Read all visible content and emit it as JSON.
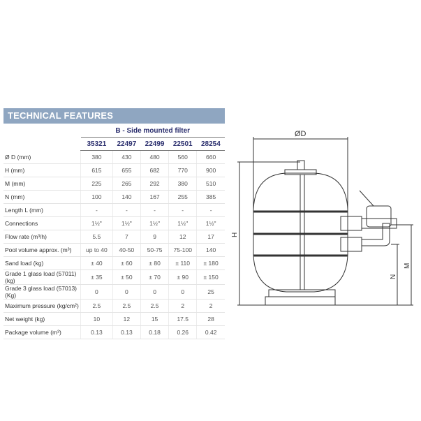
{
  "title": "TECHNICAL FEATURES",
  "group_header": "B - Side mounted filter",
  "models": [
    "35321",
    "22497",
    "22499",
    "22501",
    "28254"
  ],
  "rows": [
    {
      "label": "Ø D (mm)",
      "values": [
        "380",
        "430",
        "480",
        "560",
        "660"
      ]
    },
    {
      "label": "H (mm)",
      "values": [
        "615",
        "655",
        "682",
        "770",
        "900"
      ]
    },
    {
      "label": "M (mm)",
      "values": [
        "225",
        "265",
        "292",
        "380",
        "510"
      ]
    },
    {
      "label": "N (mm)",
      "values": [
        "100",
        "140",
        "167",
        "255",
        "385"
      ]
    },
    {
      "label": "Length L (mm)",
      "values": [
        "-",
        "-",
        "-",
        "-",
        "-"
      ]
    },
    {
      "label": "Connections",
      "values": [
        "1½\"",
        "1½\"",
        "1½\"",
        "1½\"",
        "1½\""
      ]
    },
    {
      "label": "Flow rate (m³/h)",
      "values": [
        "5.5",
        "7",
        "9",
        "12",
        "17"
      ]
    },
    {
      "label": "Pool volume approx. (m³)",
      "values": [
        "up to 40",
        "40-50",
        "50-75",
        "75-100",
        "140"
      ]
    },
    {
      "label": "Sand load (kg)",
      "values": [
        "± 40",
        "± 60",
        "± 80",
        "± 110",
        "± 180"
      ]
    },
    {
      "label": "Grade 1 glass load (57011) (kg)",
      "values": [
        "± 35",
        "± 50",
        "± 70",
        "± 90",
        "± 150"
      ]
    },
    {
      "label": "Grade 3 glass load (57013) (Kg)",
      "values": [
        "0",
        "0",
        "0",
        "0",
        "25"
      ]
    },
    {
      "label": "Maximum pressure (kg/cm²)",
      "values": [
        "2.5",
        "2.5",
        "2.5",
        "2",
        "2"
      ]
    },
    {
      "label": "Net weight (kg)",
      "values": [
        "10",
        "12",
        "15",
        "17.5",
        "28"
      ]
    },
    {
      "label": "Package volume (m³)",
      "values": [
        "0.13",
        "0.13",
        "0.18",
        "0.26",
        "0.42"
      ]
    }
  ],
  "diagram": {
    "label_d": "ØD",
    "label_h": "H",
    "label_m": "M",
    "label_n": "N"
  }
}
